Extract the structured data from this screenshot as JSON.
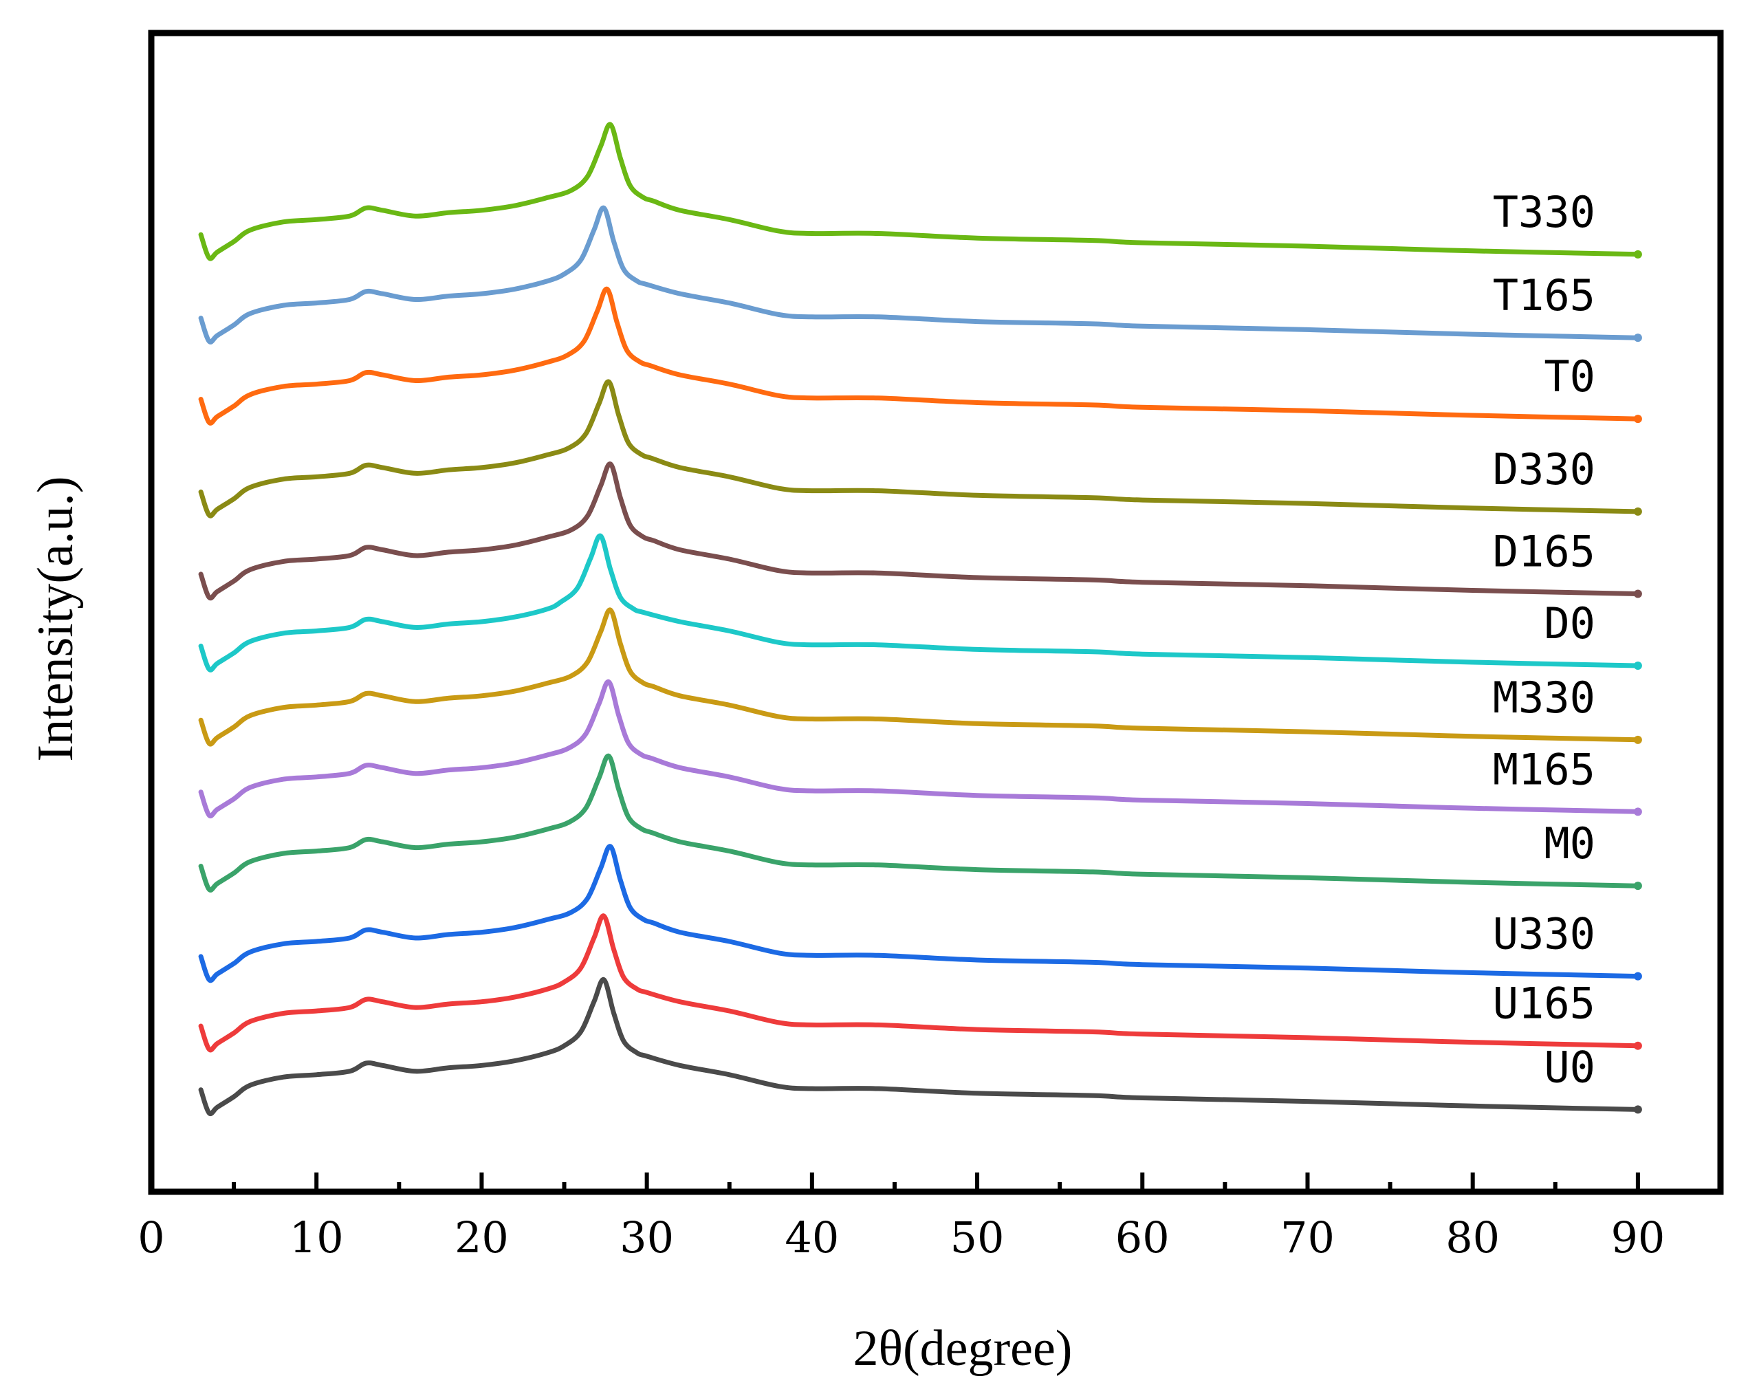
{
  "chart_data": {
    "type": "line",
    "title": "",
    "xlabel": "2θ(degree)",
    "ylabel": "Intensity(a.u.)",
    "xlim": [
      0,
      95
    ],
    "xticks": [
      0,
      10,
      20,
      30,
      40,
      50,
      60,
      70,
      80,
      90
    ],
    "ylim": [
      0,
      100
    ],
    "y_ticks_shown": false,
    "grid": false,
    "legend": "inline labels at right end of each trace",
    "profile_note": "Stacked XRD patterns; each series value = offset + relative intensity profile (x in degrees 2θ, y in arbitrary units)",
    "x": [
      3,
      3.5,
      4,
      5,
      6,
      8,
      10,
      12,
      13,
      14,
      16,
      18,
      20,
      22,
      24,
      25,
      26,
      26.8,
      27.4,
      28,
      28.6,
      29.4,
      30,
      32,
      35,
      38,
      40,
      44,
      50,
      57,
      60,
      70,
      80,
      90
    ],
    "profile": [
      2.0,
      0.0,
      0.5,
      1.4,
      2.4,
      3.1,
      3.3,
      3.6,
      4.3,
      4.1,
      3.6,
      3.9,
      4.1,
      4.5,
      5.2,
      5.8,
      7.0,
      9.6,
      11.5,
      8.6,
      6.2,
      5.2,
      4.9,
      4.1,
      3.3,
      2.3,
      2.1,
      2.1,
      1.7,
      1.5,
      1.3,
      1.0,
      0.6,
      0.3
    ],
    "series": [
      {
        "name": "U0",
        "color": "#4a4a4a",
        "offset": 6.8,
        "peak_shift": 0.0
      },
      {
        "name": "U165",
        "color": "#ee3b3b",
        "offset": 12.3,
        "peak_shift": 0.0
      },
      {
        "name": "U330",
        "color": "#1c6ae4",
        "offset": 18.3,
        "peak_shift": 0.4
      },
      {
        "name": "M0",
        "color": "#3aa36a",
        "offset": 26.1,
        "peak_shift": 0.3
      },
      {
        "name": "M165",
        "color": "#a87ad8",
        "offset": 32.5,
        "peak_shift": 0.3
      },
      {
        "name": "M330",
        "color": "#c99a14",
        "offset": 38.7,
        "peak_shift": 0.4
      },
      {
        "name": "D0",
        "color": "#1dc8c8",
        "offset": 45.1,
        "peak_shift": -0.2
      },
      {
        "name": "D165",
        "color": "#7a4e4e",
        "offset": 51.3,
        "peak_shift": 0.4
      },
      {
        "name": "D330",
        "color": "#8a8a14",
        "offset": 58.4,
        "peak_shift": 0.3
      },
      {
        "name": "T0",
        "color": "#ff6a10",
        "offset": 66.4,
        "peak_shift": 0.2
      },
      {
        "name": "T165",
        "color": "#6a9cd0",
        "offset": 73.4,
        "peak_shift": 0.0
      },
      {
        "name": "T330",
        "color": "#6ab814",
        "offset": 80.6,
        "peak_shift": 0.4
      }
    ]
  }
}
